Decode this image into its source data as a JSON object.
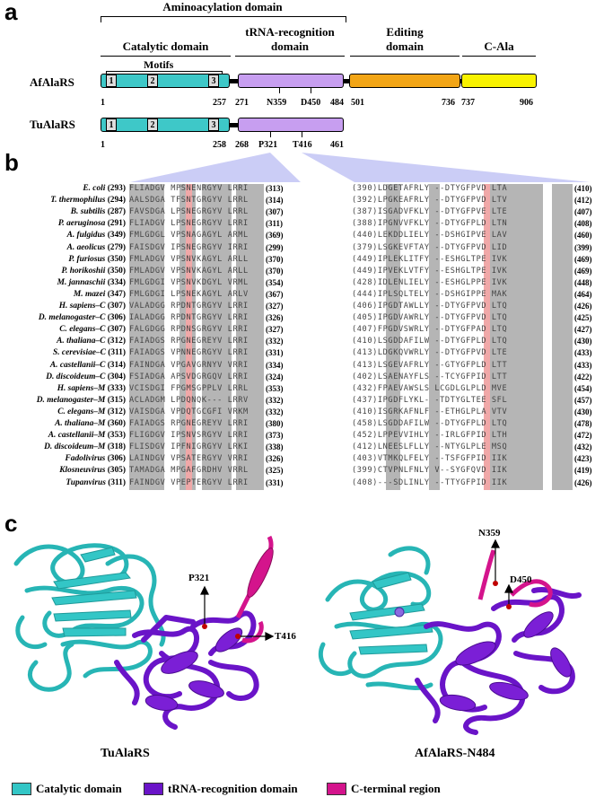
{
  "panels": {
    "a": "a",
    "b": "b",
    "c": "c"
  },
  "panel_a": {
    "aminoacylation_label": "Aminoacylation domain",
    "catalytic_label": "Catalytic domain",
    "trna_label_line1": "tRNA-recognition",
    "trna_label_line2": "domain",
    "editing_label_line1": "Editing",
    "editing_label_line2": "domain",
    "cala_label": "C-Ala",
    "motifs_label": "Motifs",
    "motif_numbers": [
      "1",
      "2",
      "3"
    ],
    "af_name": "AfAlaRS",
    "tu_name": "TuAlaRS",
    "af_ticks": [
      "1",
      "257",
      "271",
      "N359",
      "D450",
      "484",
      "501",
      "736",
      "737",
      "906"
    ],
    "tu_ticks": [
      "1",
      "258",
      "268",
      "P321",
      "T416",
      "461"
    ],
    "colors": {
      "catalytic": "#3ec8c8",
      "trna": "#c79ef0",
      "editing": "#f2a516",
      "cala": "#f8f200"
    }
  },
  "panel_b": {
    "rows": [
      {
        "name": "E. coli",
        "num": "(293)",
        "s1": "FLIADGV MPSNENRGYV LRRI",
        "e1": "(313)",
        "s2": "(390)LDGETAFRLY --DTYGFPVD LTA",
        "e2": "(410)"
      },
      {
        "name": "T. thermophilus",
        "num": "(294)",
        "s1": "AALSDGA TFSNTGRGYV LRRL",
        "e1": "(314)",
        "s2": "(392)LPGKEAFRLY --DTYGFPVD LTV",
        "e2": "(412)"
      },
      {
        "name": "B. subtilis",
        "num": "(287)",
        "s1": "FAVSDGA LPSNEGRGYV LRRL",
        "e1": "(307)",
        "s2": "(387)ISGADVFKLY --DTYGFPVE LTE",
        "e2": "(407)"
      },
      {
        "name": "P. aeruginosa",
        "num": "(291)",
        "s1": "FLIADGV LPSNEGRGYV LRRI",
        "e1": "(311)",
        "s2": "(388)IPGNVVFKLY --DTYGFPLD LTN",
        "e2": "(408)"
      },
      {
        "name": "A.    fulgidus",
        "num": "(349)",
        "s1": "FMLGDGL VPSNAGAGYL ARML",
        "e1": "(369)",
        "s2": "(440)LEKDDLIELY --DSHGIPVE LAV",
        "e2": "(460)"
      },
      {
        "name": "A.    aeolicus",
        "num": "(279)",
        "s1": "FAISDGV IPSNEGRGYV IRRI",
        "e1": "(299)",
        "s2": "(379)LSGKEVFTAY --DTYGFPVD LID",
        "e2": "(399)"
      },
      {
        "name": "P. furiosus",
        "num": "(350)",
        "s1": "FMLADGV VPSNVKAGYL ARLL",
        "e1": "(370)",
        "s2": "(449)IPLEKLITFY --ESHGLTPE IVK",
        "e2": "(469)"
      },
      {
        "name": "P. horikoshii",
        "num": "(350)",
        "s1": "FMLADGV VPSNVKAGYL ARLL",
        "e1": "(370)",
        "s2": "(449)IPVEKLVTFY --ESHGLTPE IVK",
        "e2": "(469)"
      },
      {
        "name": "M. jannaschii",
        "num": "(334)",
        "s1": "FMLGDGI VPSNVKDGYL VRML",
        "e1": "(354)",
        "s2": "(428)IDLENLIELY --ESHGLPPE IVK",
        "e2": "(448)"
      },
      {
        "name": "M. mazei",
        "num": "(347)",
        "s1": "FMLGDGI LPSNEKAGYL ARLV",
        "e1": "(367)",
        "s2": "(444)IPLSQLTELY --DSHGIPPE MAK",
        "e2": "(464)"
      },
      {
        "name": "H. sapiens–C",
        "num": "(307)",
        "s1": "VALADGG RPDNTGRGYV LRRI",
        "e1": "(327)",
        "s2": "(406)IPGDTAWLLY --DTYGFPVD LTQ",
        "e2": "(426)"
      },
      {
        "name": "D. melanogaster–C",
        "num": "(306)",
        "s1": "IALADGG RPDNTGRGYV LRRI",
        "e1": "(326)",
        "s2": "(405)IPGDVAWRLY --DTYGFPVD LTQ",
        "e2": "(425)"
      },
      {
        "name": "C. elegans–C",
        "num": "(307)",
        "s1": "FALGDGG RPDNSGRGYV LRRI",
        "e1": "(327)",
        "s2": "(407)FPGDVSWRLY --DTYGFPAD LTQ",
        "e2": "(427)"
      },
      {
        "name": "A. thaliana–C",
        "num": "(312)",
        "s1": "FAIADGS RPGNEGREYV LRRI",
        "e1": "(332)",
        "s2": "(410)LSGDDAFILW --DTYGFPLD LTQ",
        "e2": "(430)"
      },
      {
        "name": "S. cerevisiae–C",
        "num": "(311)",
        "s1": "FAIADGS VPNNEGRGYV LRRI",
        "e1": "(331)",
        "s2": "(413)LDGKQVWRLY --DTYGFPVD LTE",
        "e2": "(433)"
      },
      {
        "name": "A. castellanii–C",
        "num": "(314)",
        "s1": "FAINDGA VPGAVGRNYV VRRI",
        "e1": "(334)",
        "s2": "(413)LSGEVAFRLY --GTYGFPLD LTT",
        "e2": "(433)"
      },
      {
        "name": "D. discoideum–C",
        "num": "(304)",
        "s1": "FSIADGA APSVDGRGQV LRRI",
        "e1": "(324)",
        "s2": "(402)LSAENAYFLS --TCYGFPID LTT",
        "e2": "(422)"
      },
      {
        "name": "H. sapiens–M",
        "num": "(333)",
        "s1": "VCISDGI FPGMSGPPLV LRRL",
        "e1": "(353)",
        "s2": "(432)FPAEVAWSLS LCGDLGLPLD MVE",
        "e2": "(454)"
      },
      {
        "name": "D. melanogaster–M",
        "num": "(315)",
        "s1": "ACLADGM LPDQNQK--- LRRV",
        "e1": "(332)",
        "s2": "(437)IPGDFLYKL- -TDTYGLTEE SFL",
        "e2": "(457)"
      },
      {
        "name": "C. elegans–M",
        "num": "(312)",
        "s1": "VAISDGA VPDQTGCGFI VRKM",
        "e1": "(332)",
        "s2": "(410)ISGRKAFNLF --ETHGLPLA VTV",
        "e2": "(430)"
      },
      {
        "name": "A. thaliana–M",
        "num": "(360)",
        "s1": "FAIADGS RPGNEGREYV LRRI",
        "e1": "(380)",
        "s2": "(458)LSGDDAFILW --DTYGFPLD LTQ",
        "e2": "(478)"
      },
      {
        "name": "A. castellanii–M",
        "num": "(353)",
        "s1": "FLIGDGV IPSNVSRGYV LRRI",
        "e1": "(373)",
        "s2": "(452)LPPEVVIHLY --IRLGFPID LTH",
        "e2": "(472)"
      },
      {
        "name": "D. discoideum–M",
        "num": "(318)",
        "s1": "FLISDGV IPFNIGRGYV LRKI",
        "e1": "(338)",
        "s2": "(412)LNEESLFLLY --NTYGLPLE MSQ",
        "e2": "(432)"
      },
      {
        "name": "Fadolivirus",
        "num": "(306)",
        "s1": "LAINDGV VPSATERGYV VRRI",
        "e1": "(326)",
        "s2": "(403)VTMKQLFELY --TSFGFPID IIK",
        "e2": "(423)"
      },
      {
        "name": "Klosneuvirus",
        "num": "(305)",
        "s1": "TAMADGA MPGAFGRDHV VRRL",
        "e1": "(325)",
        "s2": "(399)CTVPNLFNLY V--SYGFQVD IIK",
        "e2": "(419)"
      },
      {
        "name": "Tupanvirus",
        "num": "(311)",
        "s1": "FAINDGV VPEPTERGYV LRRI",
        "e1": "(331)",
        "s2": "(408)---SDLINLY --TTYGFPID IIK",
        "e2": "(426)"
      }
    ]
  },
  "panel_c": {
    "tu_label": "TuAlaRS",
    "af_label": "AfAlaRS-N484",
    "tu_annotations": [
      "P321",
      "T416"
    ],
    "af_annotations": [
      "N359",
      "D450"
    ],
    "legend": [
      {
        "label": "Catalytic domain",
        "color": "#33c6c6"
      },
      {
        "label": "tRNA-recognition domain",
        "color": "#6a14c8"
      },
      {
        "label": "C-terminal region",
        "color": "#d4148c"
      }
    ]
  }
}
